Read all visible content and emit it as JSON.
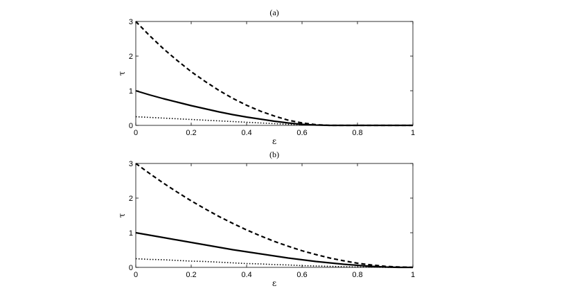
{
  "chart_data": [
    {
      "type": "line",
      "title": "(a)",
      "xlabel": "ε",
      "ylabel": "τ",
      "xlim": [
        0,
        1
      ],
      "ylim": [
        0,
        3
      ],
      "xticks": [
        "0",
        "0.2",
        "0.4",
        "0.6",
        "0.8",
        "1"
      ],
      "yticks": [
        "0",
        "1",
        "2",
        "3"
      ],
      "grid": false,
      "legend": "none",
      "series": [
        {
          "style": "dashed",
          "x": [
            0,
            0.05,
            0.1,
            0.15,
            0.2,
            0.25,
            0.3,
            0.35,
            0.4,
            0.45,
            0.5,
            0.55,
            0.6,
            0.65,
            0.7,
            0.75,
            0.8,
            0.85,
            0.9,
            0.95,
            1
          ],
          "y": [
            3.0,
            2.59,
            2.21,
            1.87,
            1.55,
            1.27,
            1.01,
            0.78,
            0.58,
            0.41,
            0.27,
            0.15,
            0.07,
            0.02,
            0.0,
            0.0,
            0.0,
            0.0,
            0.0,
            0.0,
            0.0
          ]
        },
        {
          "style": "solid",
          "x": [
            0,
            0.05,
            0.1,
            0.15,
            0.2,
            0.25,
            0.3,
            0.35,
            0.4,
            0.45,
            0.5,
            0.55,
            0.6,
            0.65,
            0.7,
            0.75,
            0.8,
            0.85,
            0.9,
            0.95,
            1
          ],
          "y": [
            1.0,
            0.88,
            0.77,
            0.67,
            0.57,
            0.48,
            0.39,
            0.31,
            0.24,
            0.18,
            0.12,
            0.07,
            0.03,
            0.01,
            0.0,
            0.0,
            0.0,
            0.0,
            0.0,
            0.0,
            0.0
          ]
        },
        {
          "style": "dotted",
          "x": [
            0,
            0.05,
            0.1,
            0.15,
            0.2,
            0.25,
            0.3,
            0.35,
            0.4,
            0.45,
            0.5,
            0.55,
            0.6,
            0.65,
            0.7,
            0.75,
            0.8,
            0.85,
            0.9,
            0.95,
            1
          ],
          "y": [
            0.25,
            0.23,
            0.21,
            0.19,
            0.17,
            0.15,
            0.13,
            0.11,
            0.09,
            0.07,
            0.05,
            0.03,
            0.02,
            0.01,
            0.0,
            0.0,
            0.0,
            0.0,
            0.0,
            0.0,
            0.0
          ]
        }
      ]
    },
    {
      "type": "line",
      "title": "(b)",
      "xlabel": "ε",
      "ylabel": "τ",
      "xlim": [
        0,
        1
      ],
      "ylim": [
        0,
        3
      ],
      "xticks": [
        "0",
        "0.2",
        "0.4",
        "0.6",
        "0.8",
        "1"
      ],
      "yticks": [
        "0",
        "1",
        "2",
        "3"
      ],
      "grid": false,
      "legend": "none",
      "series": [
        {
          "style": "dashed",
          "x": [
            0,
            0.05,
            0.1,
            0.15,
            0.2,
            0.25,
            0.3,
            0.35,
            0.4,
            0.45,
            0.5,
            0.55,
            0.6,
            0.65,
            0.7,
            0.75,
            0.8,
            0.85,
            0.9,
            0.95,
            1
          ],
          "y": [
            3.0,
            2.71,
            2.43,
            2.17,
            1.92,
            1.69,
            1.47,
            1.27,
            1.08,
            0.91,
            0.75,
            0.61,
            0.48,
            0.37,
            0.27,
            0.19,
            0.12,
            0.07,
            0.03,
            0.01,
            0.0
          ]
        },
        {
          "style": "solid",
          "x": [
            0,
            0.05,
            0.1,
            0.15,
            0.2,
            0.25,
            0.3,
            0.35,
            0.4,
            0.45,
            0.5,
            0.55,
            0.6,
            0.65,
            0.7,
            0.75,
            0.8,
            0.85,
            0.9,
            0.95,
            1
          ],
          "y": [
            1.0,
            0.93,
            0.86,
            0.79,
            0.72,
            0.65,
            0.58,
            0.51,
            0.45,
            0.39,
            0.33,
            0.27,
            0.22,
            0.17,
            0.13,
            0.09,
            0.06,
            0.03,
            0.01,
            0.0,
            0.0
          ]
        },
        {
          "style": "dotted",
          "x": [
            0,
            0.05,
            0.1,
            0.15,
            0.2,
            0.25,
            0.3,
            0.35,
            0.4,
            0.45,
            0.5,
            0.55,
            0.6,
            0.65,
            0.7,
            0.75,
            0.8,
            0.85,
            0.9,
            0.95,
            1
          ],
          "y": [
            0.25,
            0.23,
            0.22,
            0.2,
            0.18,
            0.17,
            0.15,
            0.13,
            0.11,
            0.1,
            0.08,
            0.07,
            0.05,
            0.04,
            0.03,
            0.02,
            0.01,
            0.01,
            0.0,
            0.0,
            0.0
          ]
        }
      ]
    }
  ]
}
